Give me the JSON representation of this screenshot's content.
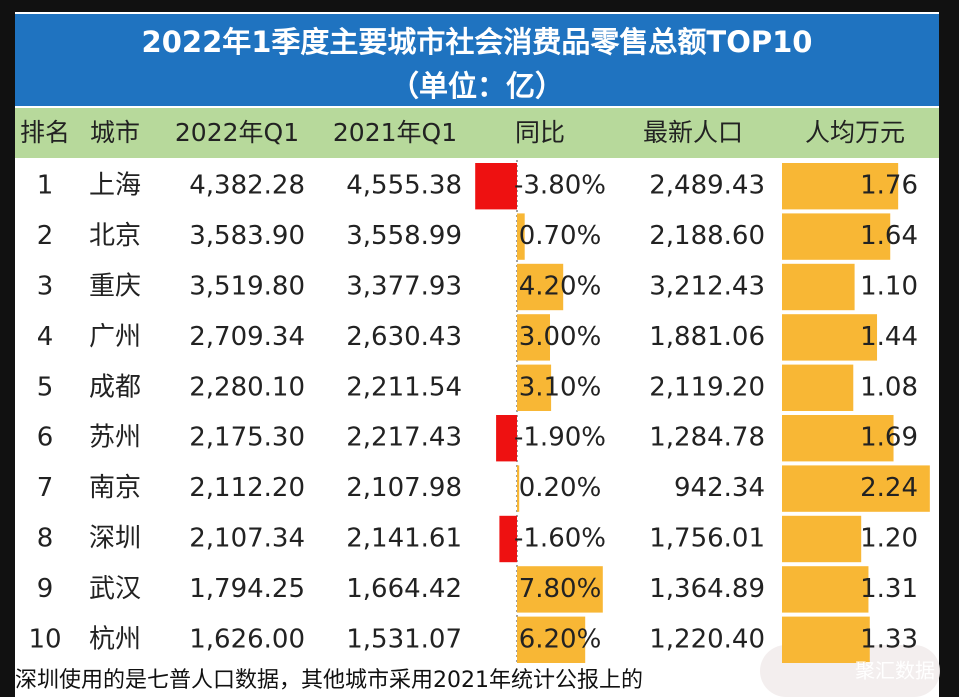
{
  "title": {
    "line1": "2022年1季度主要城市社会消费品零售总额TOP10",
    "line2": "（单位：亿）"
  },
  "table": {
    "headers": [
      "排名",
      "城市",
      "2022年Q1",
      "2021年Q1",
      "同比",
      "最新人口",
      "人均万元"
    ],
    "rows": [
      [
        "1",
        "上海",
        "4,382.28",
        "4,555.38",
        "-3.80%",
        "2,489.43",
        "1.76"
      ],
      [
        "2",
        "北京",
        "3,583.90",
        "3,558.99",
        "0.70%",
        "2,188.60",
        "1.64"
      ],
      [
        "3",
        "重庆",
        "3,519.80",
        "3,377.93",
        "4.20%",
        "3,212.43",
        "1.10"
      ],
      [
        "4",
        "广州",
        "2,709.34",
        "2,630.43",
        "3.00%",
        "1,881.06",
        "1.44"
      ],
      [
        "5",
        "成都",
        "2,280.10",
        "2,211.54",
        "3.10%",
        "2,119.20",
        "1.08"
      ],
      [
        "6",
        "苏州",
        "2,175.30",
        "2,217.43",
        "-1.90%",
        "1,284.78",
        "1.69"
      ],
      [
        "7",
        "南京",
        "2,112.20",
        "2,107.98",
        "0.20%",
        "942.34",
        "2.24"
      ],
      [
        "8",
        "深圳",
        "2,107.34",
        "2,141.61",
        "-1.60%",
        "1,756.01",
        "1.20"
      ],
      [
        "9",
        "武汉",
        "1,794.25",
        "1,664.42",
        "7.80%",
        "1,364.89",
        "1.31"
      ],
      [
        "10",
        "杭州",
        "1,626.00",
        "1,531.07",
        "6.20%",
        "1,220.40",
        "1.33"
      ]
    ]
  },
  "footer": {
    "note": "深圳使用的是七普人口数据，其他城市采用2021年统计公报上的",
    "watermark": "聚汇数据"
  }
}
